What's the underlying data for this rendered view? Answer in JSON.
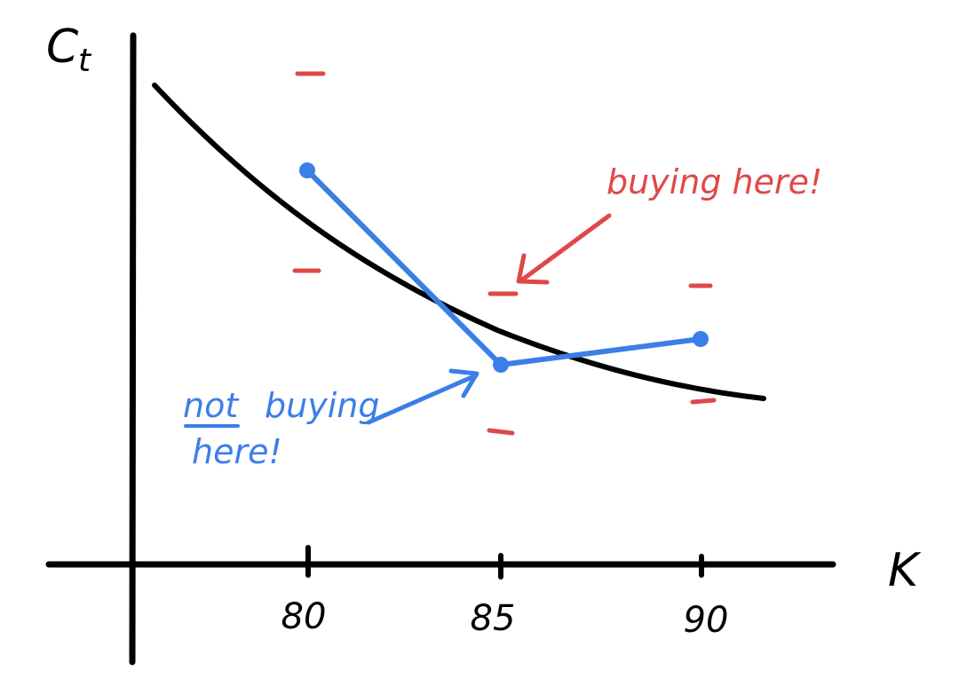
{
  "labels": {
    "y_axis": "C",
    "y_axis_sub": "t",
    "x_axis": "K"
  },
  "ticks": [
    "80",
    "85",
    "90"
  ],
  "annotations": {
    "red": "buying here!",
    "blue_underlined": "not",
    "blue_rest": "buying",
    "blue_line2": "here!"
  },
  "colors": {
    "axis": "#000000",
    "curve": "#000000",
    "blue": "#3b7ee8",
    "red": "#e04848"
  }
}
